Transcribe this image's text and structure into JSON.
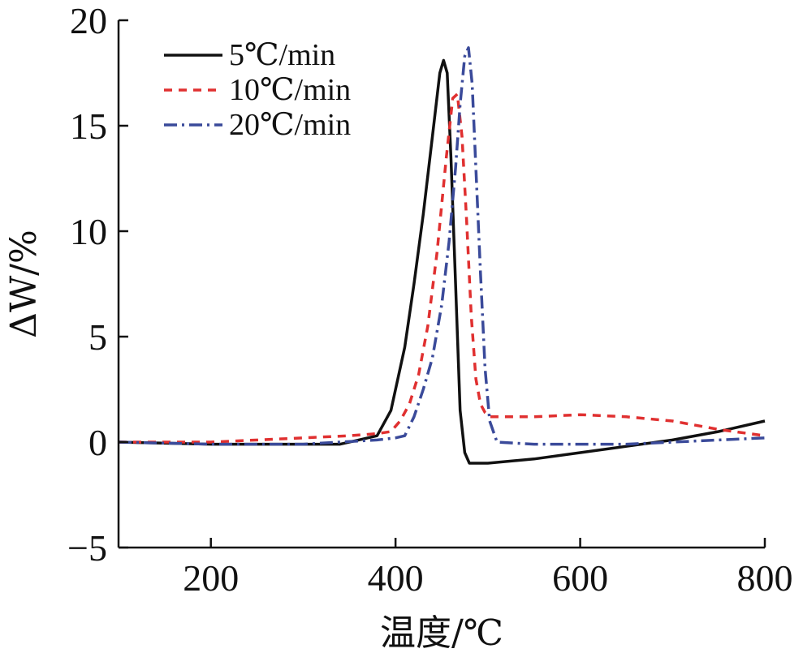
{
  "chart_data": {
    "type": "line",
    "xlabel": "温度/℃",
    "ylabel": "ΔW/%",
    "xlim": [
      100,
      800
    ],
    "ylim": [
      -5,
      20
    ],
    "x_ticks": [
      200,
      400,
      600,
      800
    ],
    "y_ticks": [
      -5,
      0,
      5,
      10,
      15,
      20
    ],
    "y_tick_labels": [
      "−5",
      "0",
      "5",
      "10",
      "15",
      "20"
    ],
    "grid": false,
    "legend_position": "top-left",
    "series": [
      {
        "name": "5℃/min",
        "color": "#111111",
        "dash": "solid",
        "x": [
          100,
          200,
          300,
          340,
          360,
          380,
          395,
          410,
          420,
          430,
          440,
          448,
          452,
          456,
          460,
          465,
          470,
          475,
          480,
          490,
          500,
          550,
          600,
          650,
          700,
          750,
          800
        ],
        "y": [
          0,
          -0.1,
          -0.1,
          -0.1,
          0.1,
          0.3,
          1.5,
          4.5,
          7.5,
          10.8,
          14.5,
          17.5,
          18.1,
          17.5,
          13.5,
          7.5,
          1.5,
          -0.5,
          -1.0,
          -1.0,
          -1.0,
          -0.8,
          -0.5,
          -0.2,
          0.1,
          0.5,
          1.0
        ]
      },
      {
        "name": "10℃/min",
        "color": "#e03030",
        "dash": "10,8",
        "x": [
          100,
          200,
          300,
          350,
          380,
          395,
          405,
          415,
          425,
          435,
          445,
          455,
          462,
          467,
          472,
          477,
          482,
          487,
          492,
          497,
          502,
          520,
          550,
          600,
          650,
          700,
          750,
          800
        ],
        "y": [
          0,
          0,
          0.2,
          0.3,
          0.4,
          0.5,
          1.0,
          1.8,
          3.2,
          5.5,
          9.0,
          13.5,
          16.3,
          16.5,
          14.5,
          10.5,
          6.0,
          3.0,
          1.8,
          1.4,
          1.2,
          1.2,
          1.2,
          1.3,
          1.2,
          1.0,
          0.6,
          0.3
        ]
      },
      {
        "name": "20℃/min",
        "color": "#3a4a9a",
        "dash": "16,6,3,6",
        "x": [
          100,
          200,
          300,
          380,
          400,
          410,
          420,
          430,
          440,
          450,
          458,
          465,
          470,
          475,
          479,
          483,
          487,
          492,
          497,
          502,
          510,
          550,
          600,
          650,
          700,
          750,
          800
        ],
        "y": [
          0,
          -0.1,
          -0.1,
          0.1,
          0.2,
          0.3,
          1.2,
          2.5,
          4.0,
          6.5,
          9.5,
          13.0,
          16.0,
          18.3,
          18.7,
          17.0,
          13.0,
          8.0,
          3.5,
          1.0,
          0.0,
          -0.1,
          -0.1,
          -0.1,
          0.0,
          0.1,
          0.2
        ]
      }
    ]
  }
}
